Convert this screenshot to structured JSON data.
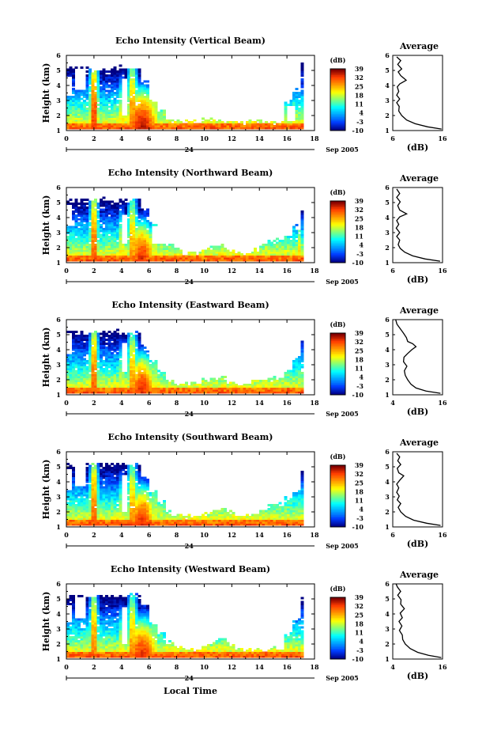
{
  "chart_data": [
    {
      "type": "heatmap",
      "title": "Echo Intensity (Vertical Beam)",
      "ylabel": "Height (km)",
      "xlim": [
        0,
        18
      ],
      "ylim": [
        1,
        6
      ],
      "xticks": [
        "0",
        "2",
        "4",
        "6",
        "8",
        "10",
        "12",
        "14",
        "16",
        "18"
      ],
      "yticks": [
        "1",
        "2",
        "3",
        "4",
        "5",
        "6"
      ],
      "date_mark": "24",
      "date_label": "Sep 2005",
      "colorbar": {
        "label": "(dB)",
        "ticks": [
          "39",
          "32",
          "25",
          "18",
          "11",
          "4",
          "-3",
          "-10"
        ],
        "range": [
          -10,
          39
        ]
      },
      "average_profile": {
        "title": "Average",
        "xlabel": "(dB)",
        "xticks": [
          "6",
          "16"
        ],
        "xlim": [
          6,
          16
        ],
        "ylim": [
          1,
          6
        ],
        "points": [
          [
            15.8,
            1.1
          ],
          [
            13,
            1.25
          ],
          [
            10.5,
            1.45
          ],
          [
            8.8,
            1.7
          ],
          [
            7.8,
            2
          ],
          [
            7.2,
            2.3
          ],
          [
            7.3,
            2.6
          ],
          [
            6.8,
            2.85
          ],
          [
            7.4,
            3.1
          ],
          [
            6.8,
            3.35
          ],
          [
            7.2,
            3.6
          ],
          [
            6.9,
            3.9
          ],
          [
            7.4,
            4.1
          ],
          [
            8.7,
            4.35
          ],
          [
            7.6,
            4.65
          ],
          [
            7.1,
            4.9
          ],
          [
            7.8,
            5.1
          ],
          [
            7.0,
            5.4
          ],
          [
            7.6,
            5.65
          ],
          [
            6.8,
            5.9
          ]
        ]
      },
      "cloud_tops_km": [
        5.1,
        5.1,
        5.1,
        5.1,
        5.1,
        5.1,
        5.1,
        5.1,
        5.1,
        4.2,
        3.0,
        2.3,
        1.6,
        1.5,
        1.5,
        1.5,
        1.6,
        1.6,
        1.6,
        1.6,
        1.6,
        1.5,
        1.5,
        1.5,
        1.5,
        1.5,
        2.8,
        3.6,
        5.3,
        5.6
      ],
      "mask": [
        [
          0.0,
          0.3,
          3.3,
          4.6
        ],
        [
          0.6,
          1.3,
          3.6,
          5.1
        ],
        [
          4.0,
          4.4,
          2.0,
          4.4
        ],
        [
          6.0,
          7.3,
          3.4,
          4.0
        ],
        [
          7.6,
          8.4,
          3.4,
          5.1
        ],
        [
          9.4,
          10.1,
          2.3,
          3.3
        ],
        [
          11.2,
          12.2,
          1.6,
          2.3
        ],
        [
          15.9,
          16.5,
          1.6,
          2.6
        ]
      ],
      "cores": [
        [
          1.9,
          0.25,
          3.6,
          1.0,
          34
        ],
        [
          4.7,
          0.3,
          3.4,
          1.0,
          30
        ],
        [
          5.4,
          0.6,
          1.2,
          0.45,
          36
        ],
        [
          3.9,
          0.2,
          2.2,
          0.8,
          24
        ],
        [
          6.3,
          0.3,
          2.6,
          0.8,
          22
        ],
        [
          16.9,
          0.12,
          3.8,
          3.0,
          40
        ]
      ]
    },
    {
      "type": "heatmap",
      "title": "Echo Intensity (Northward Beam)",
      "ylabel": "Height (km)",
      "xlim": [
        0,
        18
      ],
      "ylim": [
        1,
        6
      ],
      "xticks": [
        "0",
        "2",
        "4",
        "6",
        "8",
        "10",
        "12",
        "14",
        "16",
        "18"
      ],
      "yticks": [
        "1",
        "2",
        "3",
        "4",
        "5",
        "6"
      ],
      "date_mark": "24",
      "date_label": "Sep 2005",
      "colorbar": {
        "label": "(dB)",
        "ticks": [
          "39",
          "32",
          "25",
          "18",
          "11",
          "4",
          "-3",
          "-10"
        ],
        "range": [
          -10,
          39
        ]
      },
      "average_profile": {
        "title": "Average",
        "xlabel": "(dB)",
        "xticks": [
          "6",
          "16"
        ],
        "xlim": [
          6,
          16
        ],
        "ylim": [
          1,
          6
        ],
        "points": [
          [
            15.5,
            1.1
          ],
          [
            12.5,
            1.25
          ],
          [
            10,
            1.45
          ],
          [
            8.4,
            1.7
          ],
          [
            7.5,
            1.95
          ],
          [
            7.1,
            2.2
          ],
          [
            7.4,
            2.5
          ],
          [
            6.8,
            2.75
          ],
          [
            7.4,
            3.0
          ],
          [
            6.7,
            3.3
          ],
          [
            7.2,
            3.55
          ],
          [
            6.8,
            3.8
          ],
          [
            7.4,
            4.05
          ],
          [
            8.8,
            4.25
          ],
          [
            7.4,
            4.5
          ],
          [
            7.0,
            4.8
          ],
          [
            7.5,
            5.05
          ],
          [
            6.8,
            5.35
          ],
          [
            7.4,
            5.6
          ],
          [
            6.8,
            5.9
          ]
        ]
      },
      "cloud_tops_km": [
        5.1,
        5.1,
        5.1,
        5.1,
        5.1,
        5.1,
        5.1,
        5.1,
        5.1,
        4.5,
        3.6,
        3.0,
        2.2,
        1.8,
        1.6,
        1.6,
        1.8,
        2.0,
        2.0,
        1.8,
        1.6,
        1.6,
        1.8,
        2.2,
        2.4,
        2.4,
        2.8,
        3.4,
        4.4,
        5.1
      ],
      "mask": [
        [
          0.0,
          0.4,
          3.4,
          4.8
        ],
        [
          4.0,
          4.4,
          2.2,
          4.2
        ],
        [
          6.2,
          7.2,
          2.2,
          3.4
        ],
        [
          7.6,
          8.5,
          3.6,
          5.1
        ],
        [
          10.2,
          11.0,
          2.8,
          3.8
        ],
        [
          12.6,
          13.6,
          2.6,
          3.4
        ],
        [
          14.6,
          15.3,
          2.6,
          3.2
        ]
      ],
      "cores": [
        [
          1.9,
          0.25,
          3.6,
          1.0,
          32
        ],
        [
          4.7,
          0.3,
          3.4,
          1.0,
          28
        ],
        [
          5.4,
          0.5,
          1.2,
          0.45,
          34
        ],
        [
          3.9,
          0.2,
          2.2,
          0.8,
          24
        ],
        [
          6.3,
          0.3,
          2.6,
          0.8,
          20
        ],
        [
          16.8,
          0.15,
          3.6,
          3.0,
          24
        ]
      ]
    },
    {
      "type": "heatmap",
      "title": "Echo Intensity (Eastward Beam)",
      "ylabel": "Height (km)",
      "xlim": [
        0,
        18
      ],
      "ylim": [
        1,
        6
      ],
      "xticks": [
        "0",
        "2",
        "4",
        "6",
        "8",
        "10",
        "12",
        "14",
        "16",
        "18"
      ],
      "yticks": [
        "1",
        "2",
        "3",
        "4",
        "5",
        "6"
      ],
      "date_mark": "24",
      "date_label": "Sep 2005",
      "colorbar": {
        "label": "(dB)",
        "ticks": [
          "39",
          "32",
          "25",
          "18",
          "11",
          "4",
          "-3",
          "-10"
        ],
        "range": [
          -10,
          39
        ]
      },
      "average_profile": {
        "title": "Average",
        "xlabel": "(dB)",
        "xticks": [
          "4",
          "16"
        ],
        "xlim": [
          4,
          16
        ],
        "ylim": [
          1,
          6
        ],
        "points": [
          [
            15.5,
            1.1
          ],
          [
            12,
            1.25
          ],
          [
            9.6,
            1.45
          ],
          [
            8.4,
            1.7
          ],
          [
            7.6,
            2.0
          ],
          [
            7.0,
            2.3
          ],
          [
            6.8,
            2.6
          ],
          [
            7.4,
            2.9
          ],
          [
            6.6,
            3.2
          ],
          [
            6.7,
            3.5
          ],
          [
            7.6,
            3.75
          ],
          [
            8.6,
            4.0
          ],
          [
            9.6,
            4.2
          ],
          [
            8.8,
            4.4
          ],
          [
            7.6,
            4.55
          ],
          [
            7.3,
            4.8
          ],
          [
            6.6,
            5.1
          ],
          [
            5.8,
            5.4
          ],
          [
            5.0,
            5.7
          ],
          [
            4.7,
            6.0
          ]
        ]
      },
      "cloud_tops_km": [
        5.1,
        5.1,
        5.1,
        5.1,
        5.1,
        5.1,
        5.1,
        5.1,
        5.1,
        4.1,
        3.2,
        2.4,
        1.8,
        1.7,
        1.7,
        1.8,
        2.0,
        2.0,
        2.0,
        1.8,
        1.7,
        1.7,
        1.8,
        1.9,
        2.0,
        2.0,
        2.6,
        3.4,
        4.6,
        5.3
      ],
      "mask": [
        [
          0.0,
          0.3,
          3.6,
          5.0
        ],
        [
          4.0,
          4.4,
          2.4,
          4.4
        ],
        [
          6.2,
          7.3,
          3.2,
          4.0
        ],
        [
          7.6,
          8.3,
          3.8,
          5.1
        ],
        [
          10.0,
          10.8,
          2.4,
          3.2
        ],
        [
          13.2,
          14.2,
          2.4,
          3.0
        ]
      ],
      "cores": [
        [
          1.9,
          0.25,
          3.6,
          1.0,
          32
        ],
        [
          4.7,
          0.3,
          3.4,
          1.0,
          28
        ],
        [
          5.4,
          0.5,
          1.2,
          0.45,
          34
        ],
        [
          3.9,
          0.2,
          2.2,
          0.8,
          22
        ],
        [
          6.3,
          0.3,
          2.6,
          0.8,
          20
        ],
        [
          16.9,
          0.12,
          3.8,
          3.0,
          40
        ]
      ]
    },
    {
      "type": "heatmap",
      "title": "Echo Intensity (Southward Beam)",
      "ylabel": "Height (km)",
      "xlim": [
        0,
        18
      ],
      "ylim": [
        1,
        6
      ],
      "xticks": [
        "0",
        "2",
        "4",
        "6",
        "8",
        "10",
        "12",
        "14",
        "16",
        "18"
      ],
      "yticks": [
        "1",
        "2",
        "3",
        "4",
        "5",
        "6"
      ],
      "date_mark": "24",
      "date_label": "Sep 2005",
      "colorbar": {
        "label": "(dB)",
        "ticks": [
          "39",
          "32",
          "25",
          "18",
          "11",
          "4",
          "-3",
          "-10"
        ],
        "range": [
          -10,
          39
        ]
      },
      "average_profile": {
        "title": "Average",
        "xlabel": "(dB)",
        "xticks": [
          "6",
          "16"
        ],
        "xlim": [
          6,
          16
        ],
        "ylim": [
          1,
          6
        ],
        "points": [
          [
            15.6,
            1.1
          ],
          [
            12.8,
            1.25
          ],
          [
            10.2,
            1.45
          ],
          [
            8.6,
            1.7
          ],
          [
            7.6,
            2.0
          ],
          [
            7.1,
            2.3
          ],
          [
            7.6,
            2.55
          ],
          [
            6.9,
            2.8
          ],
          [
            7.3,
            3.05
          ],
          [
            6.8,
            3.3
          ],
          [
            7.2,
            3.6
          ],
          [
            6.8,
            3.85
          ],
          [
            7.4,
            4.1
          ],
          [
            8.2,
            4.4
          ],
          [
            7.2,
            4.6
          ],
          [
            6.9,
            4.9
          ],
          [
            7.6,
            5.15
          ],
          [
            7.0,
            5.4
          ],
          [
            7.4,
            5.65
          ],
          [
            6.8,
            5.9
          ]
        ]
      },
      "cloud_tops_km": [
        5.1,
        5.1,
        5.1,
        5.1,
        5.1,
        5.1,
        5.1,
        5.1,
        5.1,
        4.3,
        3.3,
        2.5,
        1.9,
        1.7,
        1.6,
        1.6,
        1.8,
        2.0,
        2.1,
        1.9,
        1.7,
        1.7,
        1.8,
        2.1,
        2.4,
        2.4,
        2.8,
        3.4,
        4.6,
        5.5
      ],
      "mask": [
        [
          0.0,
          0.3,
          3.4,
          4.8
        ],
        [
          0.6,
          1.4,
          3.6,
          5.2
        ],
        [
          4.0,
          4.4,
          2.0,
          4.4
        ],
        [
          6.0,
          7.2,
          3.4,
          4.2
        ],
        [
          7.6,
          8.4,
          3.6,
          5.1
        ],
        [
          9.2,
          10.2,
          2.8,
          3.6
        ],
        [
          11.4,
          12.4,
          2.4,
          3.0
        ],
        [
          14.2,
          15.0,
          2.6,
          3.2
        ]
      ],
      "cores": [
        [
          1.9,
          0.25,
          3.6,
          1.0,
          32
        ],
        [
          4.7,
          0.3,
          3.4,
          1.0,
          28
        ],
        [
          5.4,
          0.5,
          1.2,
          0.45,
          34
        ],
        [
          3.9,
          0.2,
          2.2,
          0.8,
          22
        ],
        [
          6.3,
          0.3,
          2.6,
          0.8,
          20
        ],
        [
          16.9,
          0.12,
          3.8,
          3.0,
          40
        ]
      ]
    },
    {
      "type": "heatmap",
      "title": "Echo Intensity (Westward Beam)",
      "ylabel": "Height (km)",
      "xlim": [
        0,
        18
      ],
      "ylim": [
        1,
        6
      ],
      "xticks": [
        "0",
        "2",
        "4",
        "6",
        "8",
        "10",
        "12",
        "14",
        "16",
        "18"
      ],
      "yticks": [
        "1",
        "2",
        "3",
        "4",
        "5",
        "6"
      ],
      "date_mark": "24",
      "date_label": "Sep 2005",
      "xlabel": "Local Time",
      "colorbar": {
        "label": "(dB)",
        "ticks": [
          "39",
          "32",
          "25",
          "18",
          "11",
          "4",
          "-3",
          "-10"
        ],
        "range": [
          -10,
          39
        ]
      },
      "average_profile": {
        "title": "Average",
        "xlabel": "(dB)",
        "xticks": [
          "4",
          "16"
        ],
        "xlim": [
          4,
          16
        ],
        "ylim": [
          1,
          6
        ],
        "points": [
          [
            15.7,
            1.1
          ],
          [
            12.6,
            1.25
          ],
          [
            10,
            1.45
          ],
          [
            8.2,
            1.7
          ],
          [
            7.0,
            2.0
          ],
          [
            6.4,
            2.3
          ],
          [
            6.3,
            2.6
          ],
          [
            5.6,
            2.9
          ],
          [
            6.2,
            3.2
          ],
          [
            5.5,
            3.5
          ],
          [
            6.3,
            3.75
          ],
          [
            5.8,
            4.05
          ],
          [
            6.8,
            4.35
          ],
          [
            5.9,
            4.65
          ],
          [
            6.0,
            4.95
          ],
          [
            5.2,
            5.25
          ],
          [
            5.9,
            5.5
          ],
          [
            5.1,
            5.8
          ],
          [
            4.8,
            6.0
          ]
        ]
      },
      "cloud_tops_km": [
        5.1,
        5.1,
        5.1,
        5.1,
        5.1,
        5.1,
        5.1,
        5.1,
        5.1,
        4.5,
        3.5,
        2.6,
        2.0,
        1.7,
        1.6,
        1.6,
        1.8,
        2.2,
        2.4,
        2.0,
        1.6,
        1.5,
        1.5,
        1.5,
        1.6,
        1.6,
        2.6,
        3.6,
        5.0,
        5.6
      ],
      "mask": [
        [
          0.0,
          0.4,
          3.4,
          4.6
        ],
        [
          0.6,
          1.3,
          3.6,
          5.0
        ],
        [
          4.0,
          4.4,
          2.0,
          4.4
        ],
        [
          6.2,
          7.4,
          3.2,
          4.2
        ],
        [
          7.6,
          8.4,
          3.8,
          5.1
        ],
        [
          9.4,
          10.4,
          2.0,
          3.0
        ],
        [
          13.0,
          13.8,
          2.0,
          2.6
        ]
      ],
      "cores": [
        [
          1.9,
          0.25,
          3.6,
          1.0,
          30
        ],
        [
          4.7,
          0.3,
          3.4,
          1.0,
          28
        ],
        [
          5.4,
          0.6,
          1.2,
          0.45,
          34
        ],
        [
          3.9,
          0.2,
          2.2,
          0.8,
          22
        ],
        [
          6.3,
          0.3,
          2.6,
          0.8,
          20
        ],
        [
          16.9,
          0.12,
          3.8,
          3.0,
          30
        ]
      ]
    }
  ]
}
